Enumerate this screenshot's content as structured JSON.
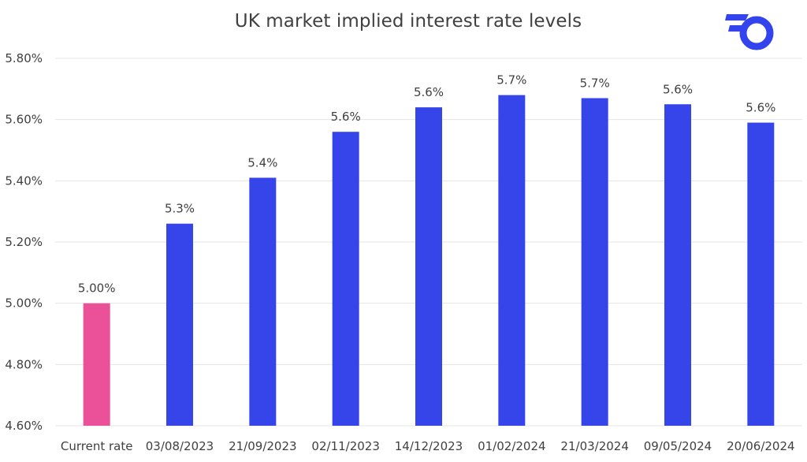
{
  "title": "UK market implied interest rate levels",
  "logo": {
    "icon": "brand-logo-icon",
    "color": "#3344ee"
  },
  "chart_data": {
    "type": "bar",
    "title": "UK market implied interest rate levels",
    "categories": [
      "Current rate",
      "03/08/2023",
      "21/09/2023",
      "02/11/2023",
      "14/12/2023",
      "01/02/2024",
      "21/03/2024",
      "09/05/2024",
      "20/06/2024"
    ],
    "values": [
      5.0,
      5.26,
      5.41,
      5.56,
      5.64,
      5.68,
      5.67,
      5.65,
      5.59
    ],
    "data_labels": [
      "5.00%",
      "5.3%",
      "5.4%",
      "5.6%",
      "5.6%",
      "5.7%",
      "5.7%",
      "5.6%",
      "5.6%"
    ],
    "bar_colors": [
      "#ea5198",
      "#3645ea",
      "#3645ea",
      "#3645ea",
      "#3645ea",
      "#3645ea",
      "#3645ea",
      "#3645ea",
      "#3645ea"
    ],
    "ylim": [
      4.6,
      5.8
    ],
    "yticks": [
      4.6,
      4.8,
      5.0,
      5.2,
      5.4,
      5.6,
      5.8
    ],
    "ytick_labels": [
      "4.60%",
      "4.80%",
      "5.00%",
      "5.20%",
      "5.40%",
      "5.60%",
      "5.80%"
    ],
    "xlabel": "",
    "ylabel": "",
    "grid": true,
    "legend": "none"
  }
}
